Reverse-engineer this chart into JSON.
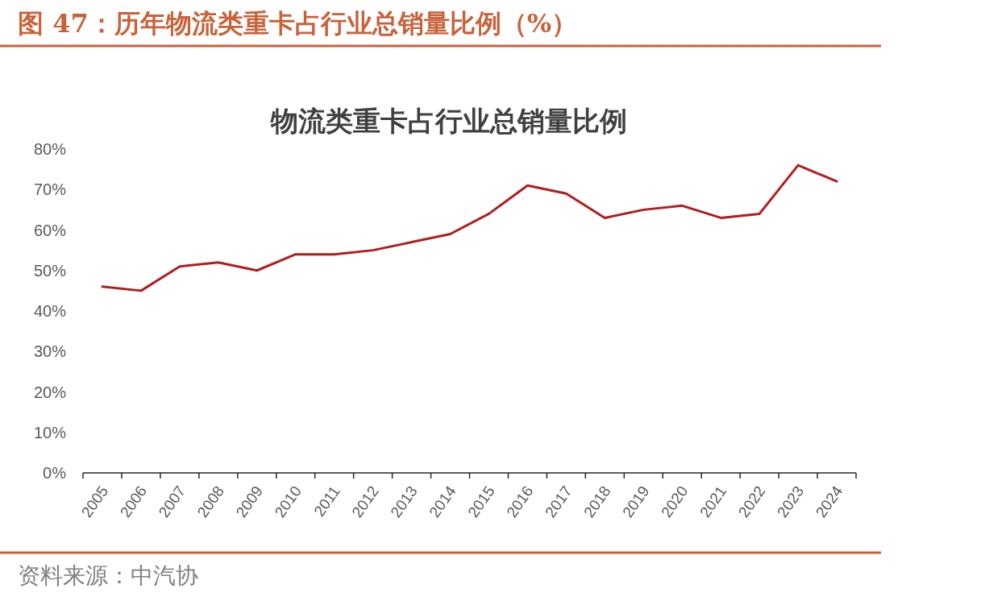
{
  "chart_data": {
    "type": "line",
    "title": "图 47：历年物流类重卡占行业总销量比例（%）",
    "subtitle": "物流类重卡占行业总销量比例",
    "annotations": [
      "资料来源：中汽协"
    ],
    "categories": [
      "2005",
      "2006",
      "2007",
      "2008",
      "2009",
      "2010",
      "2011",
      "2012",
      "2013",
      "2014",
      "2015",
      "2016",
      "2017",
      "2018",
      "2019",
      "2020",
      "2021",
      "2022",
      "2023",
      "2024"
    ],
    "series": [
      {
        "color": "#b01e1e",
        "values": [
          46,
          45,
          51,
          52,
          50,
          54,
          54,
          55,
          57,
          59,
          64,
          71,
          69,
          63,
          65,
          66,
          63,
          64,
          76,
          72
        ]
      }
    ],
    "ylim": [
      0,
      80
    ],
    "yticks": [
      {
        "value": 0,
        "label": "0%"
      },
      {
        "value": 10,
        "label": "10%"
      },
      {
        "value": 20,
        "label": "20%"
      },
      {
        "value": 30,
        "label": "30%"
      },
      {
        "value": 40,
        "label": "40%"
      },
      {
        "value": 50,
        "label": "50%"
      },
      {
        "value": 60,
        "label": "60%"
      },
      {
        "value": 70,
        "label": "70%"
      },
      {
        "value": 80,
        "label": "80%"
      }
    ],
    "line_style": "solid"
  }
}
